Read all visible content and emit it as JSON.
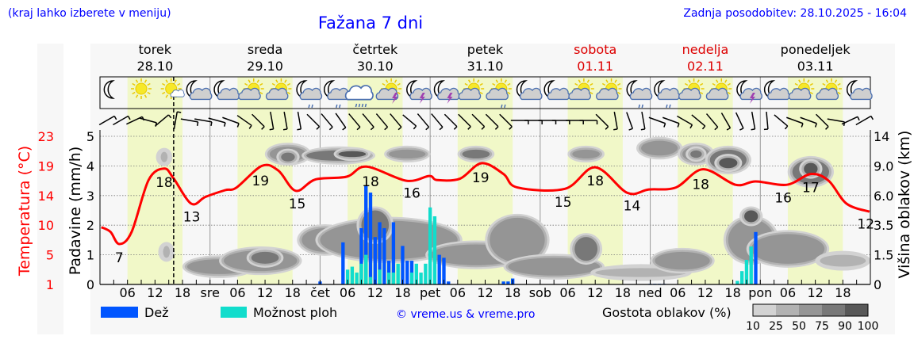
{
  "header": {
    "hint": "(kraj lahko izberete v meniju)",
    "title": "Fažana 7 dni",
    "updated": "Zadnja posodobitev: 28.10.2025 - 16:04"
  },
  "colors": {
    "text_blue": "#0000ff",
    "temp_red": "#ff0000",
    "weekend_red": "#dd0000",
    "rain": "#0055ff",
    "showers": "#11ddcc",
    "day_band": "#f1f8c8",
    "cloud_scale": [
      "#d2d2d2",
      "#b2b2b2",
      "#959595",
      "#787878",
      "#585858"
    ]
  },
  "days": [
    {
      "name": "torek",
      "date": "28.10",
      "abbr": "",
      "weekend": false
    },
    {
      "name": "sreda",
      "date": "29.10",
      "abbr": "sre",
      "weekend": false
    },
    {
      "name": "četrtek",
      "date": "30.10",
      "abbr": "čet",
      "weekend": false
    },
    {
      "name": "petek",
      "date": "31.10",
      "abbr": "pet",
      "weekend": false
    },
    {
      "name": "sobota",
      "date": "01.11",
      "abbr": "sob",
      "weekend": true
    },
    {
      "name": "nedelja",
      "date": "02.11",
      "abbr": "ned",
      "weekend": true
    },
    {
      "name": "ponedeljek",
      "date": "03.11",
      "abbr": "pon",
      "weekend": false
    }
  ],
  "icons": [
    "moon",
    "sun",
    "sun-cloud-small",
    "moon-cloud",
    "moon-cloud",
    "sun-cloud",
    "sun-cloud",
    "moon-cloud-drizzle",
    "moon-cloud-drizzle",
    "cloud-rain",
    "sun-cloud-thunder",
    "moon-cloud-thunder",
    "moon-cloud-thunder",
    "sun-cloud",
    "sun-cloud-drizzle",
    "moon-cloud",
    "moon-cloud",
    "sun-cloud",
    "sun-cloud",
    "moon-cloud-drizzle",
    "moon-cloud-drizzle",
    "sun-cloud",
    "sun-cloud",
    "moon-cloud-thunder",
    "moon-cloud",
    "sun-cloud",
    "sun-cloud",
    "moon-cloud"
  ],
  "wind_shaft_angles_deg": [
    30,
    30,
    25,
    -15,
    40,
    80,
    -10,
    -10,
    -15,
    -20,
    -35,
    -45,
    -80,
    -80,
    -80,
    -45,
    -50,
    -55,
    -50,
    -50,
    -50,
    -50,
    -40,
    -50,
    -50,
    -45,
    -45,
    -45,
    -45,
    -45,
    0,
    0,
    0,
    0,
    0,
    0,
    -45,
    -80,
    -70,
    -80,
    -20,
    -20,
    -30,
    -40,
    -50,
    -60,
    -65,
    -80,
    -85,
    -40,
    -20,
    -20,
    -45,
    -10,
    25,
    30
  ],
  "chart_data": {
    "type": "line+bar",
    "title": "Fažana 7 dni",
    "x_unit": "hours since 28.10.2025 00:00",
    "xlim": [
      0,
      168
    ],
    "x_tick_labels": [
      "06",
      "12",
      "18"
    ],
    "now_hour": 16.07,
    "left_axis_temp": {
      "label": "Temperatura (°C)",
      "ticks": [
        "23",
        "19",
        "14",
        "10",
        "5",
        "1"
      ],
      "range": [
        1,
        23
      ]
    },
    "left_axis_precip": {
      "label": "Padavine (mm/h)",
      "ticks": [
        "5",
        "4",
        "3",
        "2",
        "1",
        "0"
      ],
      "range": [
        0,
        5
      ]
    },
    "right_axis_cloud": {
      "label": "Višina oblakov (km)",
      "ticks": [
        "14",
        "9.0",
        "6.0",
        "3.5",
        "1.5",
        "0"
      ]
    },
    "temperature": [
      [
        0.3,
        9.5
      ],
      [
        2.3,
        8.8
      ],
      [
        4.2,
        7
      ],
      [
        6.9,
        8.8
      ],
      [
        10.6,
        16.5
      ],
      [
        14,
        18.2
      ],
      [
        16,
        16.8
      ],
      [
        19.9,
        13
      ],
      [
        23,
        14
      ],
      [
        27.3,
        15
      ],
      [
        29.8,
        15.4
      ],
      [
        35.3,
        18.6
      ],
      [
        38.9,
        17.9
      ],
      [
        42.7,
        14.9
      ],
      [
        47,
        16.6
      ],
      [
        53.8,
        17
      ],
      [
        58.1,
        18.5
      ],
      [
        66.8,
        16.4
      ],
      [
        71.8,
        17.1
      ],
      [
        73.5,
        16.5
      ],
      [
        78.5,
        16.7
      ],
      [
        83.2,
        19
      ],
      [
        88,
        17.4
      ],
      [
        91,
        15.4
      ],
      [
        101.4,
        15.2
      ],
      [
        108,
        18.4
      ],
      [
        115,
        14.6
      ],
      [
        119.7,
        15.1
      ],
      [
        125.6,
        15.4
      ],
      [
        131.5,
        18.1
      ],
      [
        138.6,
        15.8
      ],
      [
        143,
        16.3
      ],
      [
        149.8,
        15.8
      ],
      [
        155,
        17.4
      ],
      [
        158.9,
        16.4
      ],
      [
        162.8,
        13
      ],
      [
        167.8,
        11.8
      ]
    ],
    "temp_labels": [
      [
        4.2,
        "7"
      ],
      [
        14,
        "18"
      ],
      [
        20,
        "13"
      ],
      [
        35,
        "19"
      ],
      [
        43,
        "15"
      ],
      [
        59,
        "18"
      ],
      [
        68,
        "16"
      ],
      [
        83,
        "19"
      ],
      [
        101,
        "15"
      ],
      [
        108,
        "18"
      ],
      [
        116,
        "14"
      ],
      [
        131,
        "18"
      ],
      [
        149,
        "16"
      ],
      [
        155,
        "17"
      ],
      [
        167,
        "12"
      ]
    ],
    "rain": [
      [
        48,
        0.1
      ],
      [
        53,
        1.42
      ],
      [
        57,
        1.9
      ],
      [
        58,
        3.35
      ],
      [
        59,
        3.1
      ],
      [
        60,
        1.6
      ],
      [
        61,
        2.1
      ],
      [
        62,
        1.9
      ],
      [
        63,
        0.8
      ],
      [
        64,
        2.1
      ],
      [
        66,
        1.3
      ],
      [
        67,
        0.8
      ],
      [
        68,
        0.8
      ],
      [
        74,
        1.0
      ],
      [
        75,
        0.9
      ],
      [
        76,
        0.1
      ],
      [
        88,
        0.1
      ],
      [
        89,
        0.1
      ],
      [
        90,
        0.2
      ],
      [
        120,
        0.02
      ],
      [
        121,
        0.02
      ],
      [
        122,
        0.02
      ],
      [
        123,
        0.02
      ],
      [
        143,
        1.77
      ]
    ],
    "showers": [
      [
        54,
        0.5
      ],
      [
        55,
        0.6
      ],
      [
        56,
        0.4
      ],
      [
        57,
        0.7
      ],
      [
        58,
        1.0
      ],
      [
        59,
        0.25
      ],
      [
        61,
        0.5
      ],
      [
        63,
        0.4
      ],
      [
        64,
        0.4
      ],
      [
        65,
        0.7
      ],
      [
        68,
        0.4
      ],
      [
        69,
        0.7
      ],
      [
        70,
        0.4
      ],
      [
        71,
        0.7
      ],
      [
        72,
        2.6
      ],
      [
        73,
        2.3
      ],
      [
        139,
        0.12
      ],
      [
        140,
        0.45
      ],
      [
        141,
        0.83
      ],
      [
        142,
        1.28
      ]
    ],
    "cloud_density_blobs_note": "hour, level on axis scale (0-5), width hours, height level-units, density %",
    "clouds": [
      [
        14,
        4.3,
        1.5,
        0.35,
        25
      ],
      [
        14.5,
        1.1,
        1.5,
        0.4,
        25
      ],
      [
        26,
        0.6,
        14,
        0.5,
        50
      ],
      [
        35,
        0.8,
        16,
        0.7,
        50
      ],
      [
        36,
        0.9,
        6,
        0.4,
        75
      ],
      [
        41,
        4.4,
        8,
        0.5,
        50
      ],
      [
        41,
        4.3,
        3,
        0.3,
        75
      ],
      [
        49,
        1.5,
        10,
        0.8,
        50
      ],
      [
        52,
        4.35,
        14,
        0.35,
        75
      ],
      [
        55,
        4.4,
        6,
        0.2,
        90
      ],
      [
        63,
        1.5,
        30,
        1.3,
        50
      ],
      [
        60,
        2.0,
        6,
        1.0,
        75
      ],
      [
        67,
        4.4,
        8,
        0.3,
        50
      ],
      [
        82,
        4.4,
        6,
        0.3,
        75
      ],
      [
        82,
        1.0,
        20,
        0.7,
        50
      ],
      [
        91,
        1.5,
        12,
        1.5,
        50
      ],
      [
        99,
        0.6,
        20,
        0.6,
        50
      ],
      [
        106,
        4.4,
        6,
        0.3,
        50
      ],
      [
        106,
        1.2,
        5,
        0.8,
        75
      ],
      [
        118,
        0.4,
        20,
        0.3,
        25
      ],
      [
        122,
        4.6,
        8,
        0.5,
        50
      ],
      [
        130,
        4.4,
        6,
        0.5,
        50
      ],
      [
        130,
        4.4,
        2.5,
        0.25,
        75
      ],
      [
        137,
        4.2,
        8,
        0.7,
        75
      ],
      [
        137,
        4.1,
        4,
        0.35,
        90
      ],
      [
        127,
        0.8,
        12,
        0.6,
        50
      ],
      [
        142,
        1.5,
        10,
        1.4,
        50
      ],
      [
        142,
        2.3,
        3,
        0.4,
        90
      ],
      [
        150,
        1.2,
        16,
        1.0,
        50
      ],
      [
        155,
        3.8,
        8,
        0.8,
        75
      ],
      [
        155,
        3.9,
        3,
        0.4,
        90
      ],
      [
        162,
        0.8,
        10,
        0.4,
        25
      ]
    ]
  },
  "legend": {
    "rain_label": "Dež",
    "showers_label": "Možnost ploh",
    "credit": "© vreme.us & vreme.pro",
    "cloud_label": "Gostota oblakov (%)",
    "cloud_ticks": [
      "10",
      "25",
      "50",
      "75",
      "90",
      "100"
    ]
  }
}
